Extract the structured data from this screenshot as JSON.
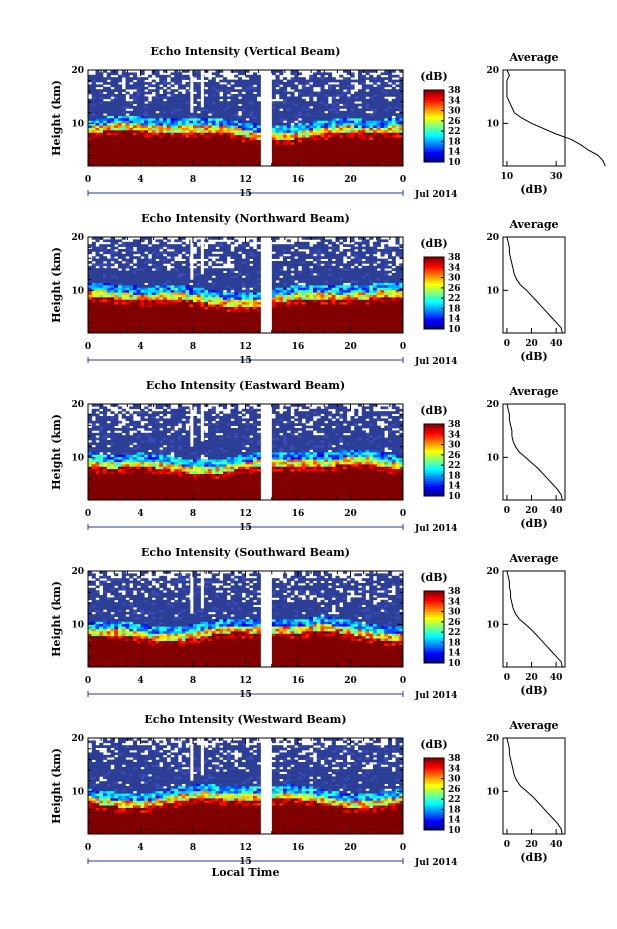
{
  "figure": {
    "xlabel_bottom": "Local Time"
  },
  "chart_data": [
    {
      "type": "heatmap",
      "title": "Echo Intensity (Vertical Beam)",
      "ylabel": "Height (km)",
      "ylim": [
        2,
        20
      ],
      "yticks": [
        "20",
        "10"
      ],
      "xlim": [
        0,
        24
      ],
      "xticks": [
        "0",
        "4",
        "8",
        "12",
        "16",
        "20",
        "0"
      ],
      "date_day": "15",
      "date_label": "Jul 2014",
      "colorbar": {
        "label": "(dB)",
        "ticks": [
          "38",
          "34",
          "30",
          "26",
          "22",
          "18",
          "14",
          "10"
        ]
      },
      "no_data_hours": [
        13.2,
        14.0
      ],
      "average": {
        "title": "Average",
        "xlabel": "(dB)",
        "xticks": [
          "10",
          "30"
        ],
        "profile": [
          [
            2,
            50
          ],
          [
            3,
            49
          ],
          [
            4,
            47
          ],
          [
            5,
            43
          ],
          [
            6,
            40
          ],
          [
            7,
            36
          ],
          [
            8,
            30
          ],
          [
            9,
            25
          ],
          [
            10,
            20
          ],
          [
            11,
            16
          ],
          [
            12,
            13
          ],
          [
            13,
            12
          ],
          [
            14,
            11
          ],
          [
            15,
            10
          ],
          [
            16,
            10
          ],
          [
            17,
            10
          ],
          [
            18,
            10
          ],
          [
            19,
            11
          ],
          [
            20,
            10
          ]
        ]
      }
    },
    {
      "type": "heatmap",
      "title": "Echo Intensity (Northward Beam)",
      "ylabel": "Height (km)",
      "ylim": [
        2,
        20
      ],
      "yticks": [
        "20",
        "10"
      ],
      "xlim": [
        0,
        24
      ],
      "xticks": [
        "0",
        "4",
        "8",
        "12",
        "16",
        "20",
        "0"
      ],
      "date_day": "15",
      "date_label": "Jul 2014",
      "colorbar": {
        "label": "(dB)",
        "ticks": [
          "38",
          "34",
          "30",
          "26",
          "22",
          "18",
          "14",
          "10"
        ]
      },
      "no_data_hours": [
        13.2,
        14.0
      ],
      "average": {
        "title": "Average",
        "xlabel": "(dB)",
        "xticks": [
          "0",
          "20",
          "40"
        ],
        "profile": [
          [
            2,
            45
          ],
          [
            3,
            44
          ],
          [
            4,
            40
          ],
          [
            5,
            36
          ],
          [
            6,
            32
          ],
          [
            7,
            28
          ],
          [
            8,
            24
          ],
          [
            9,
            20
          ],
          [
            10,
            16
          ],
          [
            11,
            11
          ],
          [
            12,
            8
          ],
          [
            13,
            6
          ],
          [
            14,
            5
          ],
          [
            15,
            4
          ],
          [
            16,
            3
          ],
          [
            17,
            2
          ],
          [
            18,
            2
          ],
          [
            19,
            1
          ],
          [
            20,
            0
          ]
        ]
      }
    },
    {
      "type": "heatmap",
      "title": "Echo Intensity (Eastward Beam)",
      "ylabel": "Height (km)",
      "ylim": [
        2,
        20
      ],
      "yticks": [
        "20",
        "10"
      ],
      "xlim": [
        0,
        24
      ],
      "xticks": [
        "0",
        "4",
        "8",
        "12",
        "16",
        "20",
        "0"
      ],
      "date_day": "15",
      "date_label": "Jul 2014",
      "colorbar": {
        "label": "(dB)",
        "ticks": [
          "38",
          "34",
          "30",
          "26",
          "22",
          "18",
          "14",
          "10"
        ]
      },
      "no_data_hours": [
        13.2,
        14.0
      ],
      "average": {
        "title": "Average",
        "xlabel": "(dB)",
        "xticks": [
          "0",
          "20",
          "40"
        ],
        "profile": [
          [
            2,
            45
          ],
          [
            3,
            44
          ],
          [
            4,
            41
          ],
          [
            5,
            37
          ],
          [
            6,
            33
          ],
          [
            7,
            29
          ],
          [
            8,
            25
          ],
          [
            9,
            20
          ],
          [
            10,
            15
          ],
          [
            11,
            10
          ],
          [
            12,
            7
          ],
          [
            13,
            5
          ],
          [
            14,
            4
          ],
          [
            15,
            4
          ],
          [
            16,
            3
          ],
          [
            17,
            2
          ],
          [
            18,
            2
          ],
          [
            19,
            1
          ],
          [
            20,
            0
          ]
        ]
      }
    },
    {
      "type": "heatmap",
      "title": "Echo Intensity (Southward Beam)",
      "ylabel": "Height (km)",
      "ylim": [
        2,
        20
      ],
      "yticks": [
        "20",
        "10"
      ],
      "xlim": [
        0,
        24
      ],
      "xticks": [
        "0",
        "4",
        "8",
        "12",
        "16",
        "20",
        "0"
      ],
      "date_day": "15",
      "date_label": "Jul 2014",
      "colorbar": {
        "label": "(dB)",
        "ticks": [
          "38",
          "34",
          "30",
          "26",
          "22",
          "18",
          "14",
          "10"
        ]
      },
      "no_data_hours": [
        13.2,
        14.0
      ],
      "average": {
        "title": "Average",
        "xlabel": "(dB)",
        "xticks": [
          "0",
          "20",
          "40"
        ],
        "profile": [
          [
            2,
            45
          ],
          [
            3,
            44
          ],
          [
            4,
            40
          ],
          [
            5,
            36
          ],
          [
            6,
            32
          ],
          [
            7,
            28
          ],
          [
            8,
            24
          ],
          [
            9,
            20
          ],
          [
            10,
            15
          ],
          [
            11,
            10
          ],
          [
            12,
            7
          ],
          [
            13,
            5
          ],
          [
            14,
            4
          ],
          [
            15,
            3
          ],
          [
            16,
            3
          ],
          [
            17,
            2
          ],
          [
            18,
            2
          ],
          [
            19,
            1
          ],
          [
            20,
            0
          ]
        ]
      }
    },
    {
      "type": "heatmap",
      "title": "Echo Intensity (Westward Beam)",
      "ylabel": "Height (km)",
      "ylim": [
        2,
        20
      ],
      "yticks": [
        "20",
        "10"
      ],
      "xlim": [
        0,
        24
      ],
      "xticks": [
        "0",
        "4",
        "8",
        "12",
        "16",
        "20",
        "0"
      ],
      "date_day": "15",
      "date_label": "Jul 2014",
      "colorbar": {
        "label": "(dB)",
        "ticks": [
          "38",
          "34",
          "30",
          "26",
          "22",
          "18",
          "14",
          "10"
        ]
      },
      "no_data_hours": [
        13.2,
        14.0
      ],
      "average": {
        "title": "Average",
        "xlabel": "(dB)",
        "xticks": [
          "0",
          "20",
          "40"
        ],
        "profile": [
          [
            2,
            45
          ],
          [
            3,
            44
          ],
          [
            4,
            41
          ],
          [
            5,
            37
          ],
          [
            6,
            33
          ],
          [
            7,
            29
          ],
          [
            8,
            25
          ],
          [
            9,
            21
          ],
          [
            10,
            16
          ],
          [
            11,
            11
          ],
          [
            12,
            8
          ],
          [
            13,
            6
          ],
          [
            14,
            5
          ],
          [
            15,
            4
          ],
          [
            16,
            3
          ],
          [
            17,
            2
          ],
          [
            18,
            2
          ],
          [
            19,
            1
          ],
          [
            20,
            0
          ]
        ]
      }
    }
  ]
}
